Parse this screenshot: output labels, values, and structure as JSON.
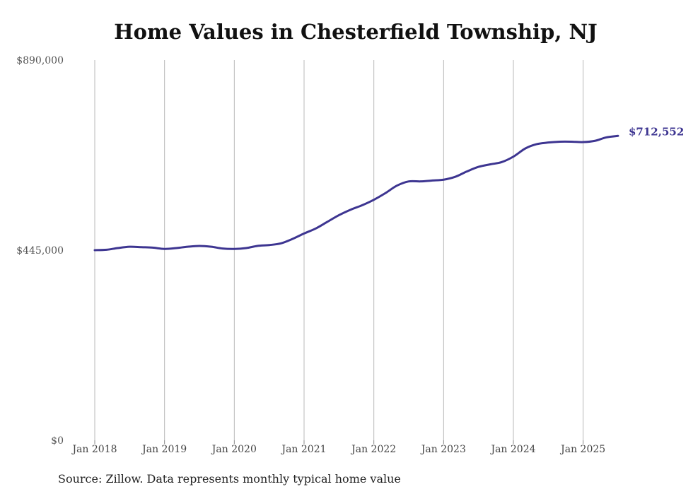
{
  "chart_data": {
    "type": "line",
    "title": "Home Values in Chesterfield Township, NJ",
    "xlabel": "",
    "ylabel": "",
    "ylim": [
      0,
      890000
    ],
    "y_ticks": [
      {
        "value": 0,
        "label": "$0"
      },
      {
        "value": 445000,
        "label": "$445,000"
      },
      {
        "value": 890000,
        "label": "$890,000"
      }
    ],
    "x_ticks": [
      {
        "value": 2018.0,
        "label": "Jan 2018"
      },
      {
        "value": 2019.0,
        "label": "Jan 2019"
      },
      {
        "value": 2020.0,
        "label": "Jan 2020"
      },
      {
        "value": 2021.0,
        "label": "Jan 2021"
      },
      {
        "value": 2022.0,
        "label": "Jan 2022"
      },
      {
        "value": 2023.0,
        "label": "Jan 2023"
      },
      {
        "value": 2024.0,
        "label": "Jan 2024"
      },
      {
        "value": 2025.0,
        "label": "Jan 2025"
      }
    ],
    "xlim": [
      2018.0,
      2025.5
    ],
    "grid": "vertical",
    "series": [
      {
        "color": "#3d3591",
        "end_label": "$712,552",
        "points": [
          [
            2018.0,
            445000
          ],
          [
            2018.17,
            446000
          ],
          [
            2018.33,
            450000
          ],
          [
            2018.5,
            453000
          ],
          [
            2018.67,
            452000
          ],
          [
            2018.83,
            451000
          ],
          [
            2019.0,
            448000
          ],
          [
            2019.17,
            450000
          ],
          [
            2019.33,
            453000
          ],
          [
            2019.5,
            455000
          ],
          [
            2019.67,
            453000
          ],
          [
            2019.83,
            449000
          ],
          [
            2020.0,
            448000
          ],
          [
            2020.17,
            450000
          ],
          [
            2020.33,
            455000
          ],
          [
            2020.5,
            457000
          ],
          [
            2020.67,
            461000
          ],
          [
            2020.83,
            471000
          ],
          [
            2021.0,
            484000
          ],
          [
            2021.17,
            496000
          ],
          [
            2021.33,
            511000
          ],
          [
            2021.5,
            527000
          ],
          [
            2021.67,
            540000
          ],
          [
            2021.83,
            550000
          ],
          [
            2022.0,
            563000
          ],
          [
            2022.17,
            579000
          ],
          [
            2022.33,
            596000
          ],
          [
            2022.5,
            606000
          ],
          [
            2022.67,
            606000
          ],
          [
            2022.83,
            608000
          ],
          [
            2023.0,
            610000
          ],
          [
            2023.17,
            617000
          ],
          [
            2023.33,
            629000
          ],
          [
            2023.5,
            640000
          ],
          [
            2023.67,
            646000
          ],
          [
            2023.83,
            651000
          ],
          [
            2024.0,
            664000
          ],
          [
            2024.17,
            683000
          ],
          [
            2024.33,
            693000
          ],
          [
            2024.5,
            697000
          ],
          [
            2024.67,
            699000
          ],
          [
            2024.83,
            699000
          ],
          [
            2025.0,
            698000
          ],
          [
            2025.17,
            701000
          ],
          [
            2025.33,
            709000
          ],
          [
            2025.5,
            712552
          ]
        ]
      }
    ]
  },
  "footer": {
    "source": "Source: Zillow. Data represents monthly typical home value"
  }
}
